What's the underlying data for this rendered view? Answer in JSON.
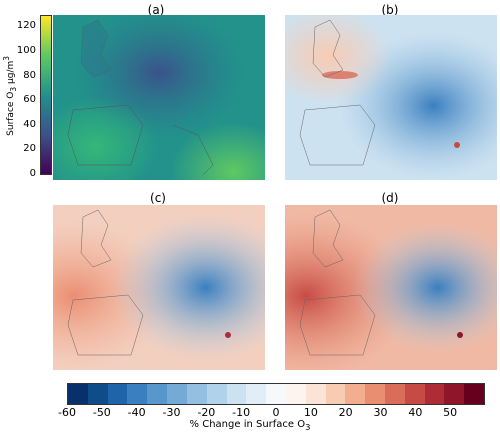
{
  "chart_data": [
    {
      "panel": "a",
      "type": "heatmap",
      "title": "(a)",
      "colorbar": {
        "label_main": "Surface O",
        "label_sub": "3",
        "label_unit": " µg/m",
        "label_sup": "3",
        "ticks": [
          "0",
          "20",
          "40",
          "60",
          "80",
          "100",
          "120"
        ],
        "min": 0,
        "max": 130,
        "colormap": "viridis",
        "colors": [
          "#440154",
          "#3b528b",
          "#21918c",
          "#5ec962",
          "#fde725"
        ]
      }
    },
    {
      "panel": "b",
      "type": "heatmap",
      "title": "(b)"
    },
    {
      "panel": "c",
      "type": "heatmap",
      "title": "(c)"
    },
    {
      "panel": "d",
      "type": "heatmap",
      "title": "(d)"
    },
    {
      "type": "colorbar",
      "label_main": "% Change in Surface O",
      "label_sub": "3",
      "ticks": [
        "-60",
        "-50",
        "-40",
        "-30",
        "-20",
        "-10",
        "0",
        "10",
        "20",
        "30",
        "40",
        "50"
      ],
      "min": -60,
      "max": 60,
      "colors": [
        "#08306b",
        "#0f4c8a",
        "#1f63a8",
        "#3a7fc0",
        "#5797cc",
        "#75aad6",
        "#93c0e0",
        "#b1d3ea",
        "#cde2f1",
        "#e2eef7",
        "#f5f9fc",
        "#fdf3ef",
        "#fbe3d7",
        "#f8cbb3",
        "#f3ae90",
        "#ea8e72",
        "#da6c5a",
        "#c74b45",
        "#ad2c35",
        "#8f1528",
        "#67001f"
      ]
    }
  ]
}
